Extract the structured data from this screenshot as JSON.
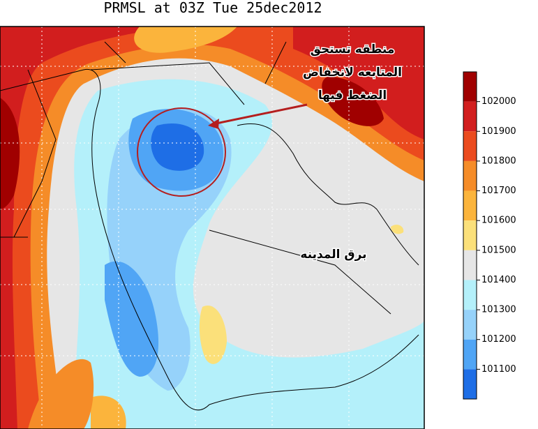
{
  "title": "PRMSL at 03Z Tue 25dec2012",
  "annotations": {
    "low_area": [
      "منطقه تستحق",
      "المتابعه لانخفاض",
      "الضغط فيها"
    ],
    "place": "برق المدينه"
  },
  "colorbar": {
    "labels": [
      "102000",
      "101900",
      "101800",
      "101700",
      "101600",
      "101500",
      "101400",
      "101300",
      "101200",
      "101100"
    ],
    "colors": [
      "#a00000",
      "#d21e1e",
      "#eb4b1e",
      "#f58c28",
      "#fbb43c",
      "#fbe07a",
      "#e6e6e6",
      "#b4f0fa",
      "#96d2fa",
      "#50a5f5",
      "#1e6ee6"
    ]
  }
}
